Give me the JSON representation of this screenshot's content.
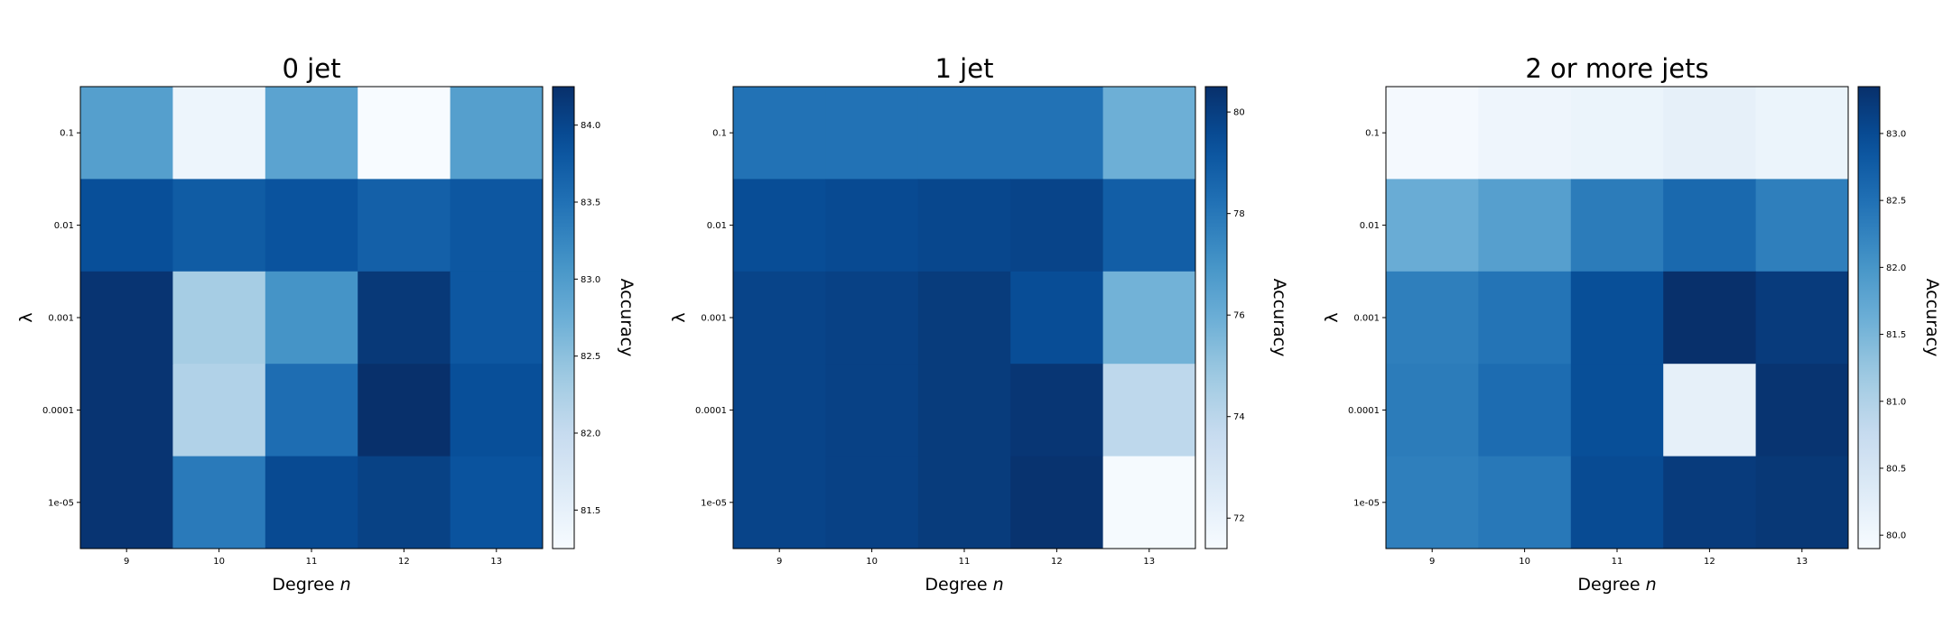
{
  "chart_data": [
    {
      "type": "heatmap",
      "title": "0 jet",
      "xlabel": "Degree n",
      "ylabel": "λ",
      "colorbar_label": "Accuracy",
      "colormap": "Blues",
      "x": [
        "9",
        "10",
        "11",
        "12",
        "13"
      ],
      "y": [
        "0.1",
        "0.01",
        "0.001",
        "0.0001",
        "1e-05"
      ],
      "values": [
        [
          82.95,
          81.4,
          82.9,
          81.25,
          82.95
        ],
        [
          83.9,
          83.75,
          83.85,
          83.7,
          83.8
        ],
        [
          84.2,
          82.3,
          83.1,
          84.15,
          83.8
        ],
        [
          84.2,
          82.2,
          83.55,
          84.25,
          83.9
        ],
        [
          84.2,
          83.4,
          83.95,
          84.05,
          83.85
        ]
      ],
      "vmin": 81.25,
      "vmax": 84.25,
      "colorbar_ticks": [
        "81.5",
        "82.0",
        "82.5",
        "83.0",
        "83.5",
        "84.0"
      ]
    },
    {
      "type": "heatmap",
      "title": "1 jet",
      "xlabel": "Degree n",
      "ylabel": "λ",
      "colorbar_label": "Accuracy",
      "colormap": "Blues",
      "x": [
        "9",
        "10",
        "11",
        "12",
        "13"
      ],
      "y": [
        "0.1",
        "0.01",
        "0.001",
        "0.0001",
        "1e-05"
      ],
      "values": [
        [
          78.2,
          78.2,
          78.2,
          78.2,
          75.9
        ],
        [
          79.5,
          79.6,
          79.7,
          79.8,
          78.9
        ],
        [
          79.8,
          79.9,
          80.1,
          79.5,
          75.8
        ],
        [
          79.8,
          79.9,
          80.1,
          80.3,
          73.9
        ],
        [
          79.8,
          79.9,
          80.1,
          80.4,
          71.5
        ]
      ],
      "vmin": 71.4,
      "vmax": 80.5,
      "colorbar_ticks": [
        "72",
        "74",
        "76",
        "78",
        "80"
      ]
    },
    {
      "type": "heatmap",
      "title": "2 or more jets",
      "xlabel": "Degree n",
      "ylabel": "λ",
      "colorbar_label": "Accuracy",
      "colormap": "Blues",
      "x": [
        "9",
        "10",
        "11",
        "12",
        "13"
      ],
      "y": [
        "0.1",
        "0.01",
        "0.001",
        "0.0001",
        "1e-05"
      ],
      "values": [
        [
          79.95,
          80.05,
          80.1,
          80.2,
          80.1
        ],
        [
          81.65,
          81.85,
          82.35,
          82.6,
          82.3
        ],
        [
          82.3,
          82.45,
          82.95,
          83.35,
          83.2
        ],
        [
          82.35,
          82.55,
          82.95,
          80.2,
          83.3
        ],
        [
          82.3,
          82.4,
          83.0,
          83.2,
          83.25
        ]
      ],
      "vmin": 79.9,
      "vmax": 83.35,
      "colorbar_ticks": [
        "80.0",
        "80.5",
        "81.0",
        "81.5",
        "82.0",
        "82.5",
        "83.0"
      ]
    }
  ]
}
